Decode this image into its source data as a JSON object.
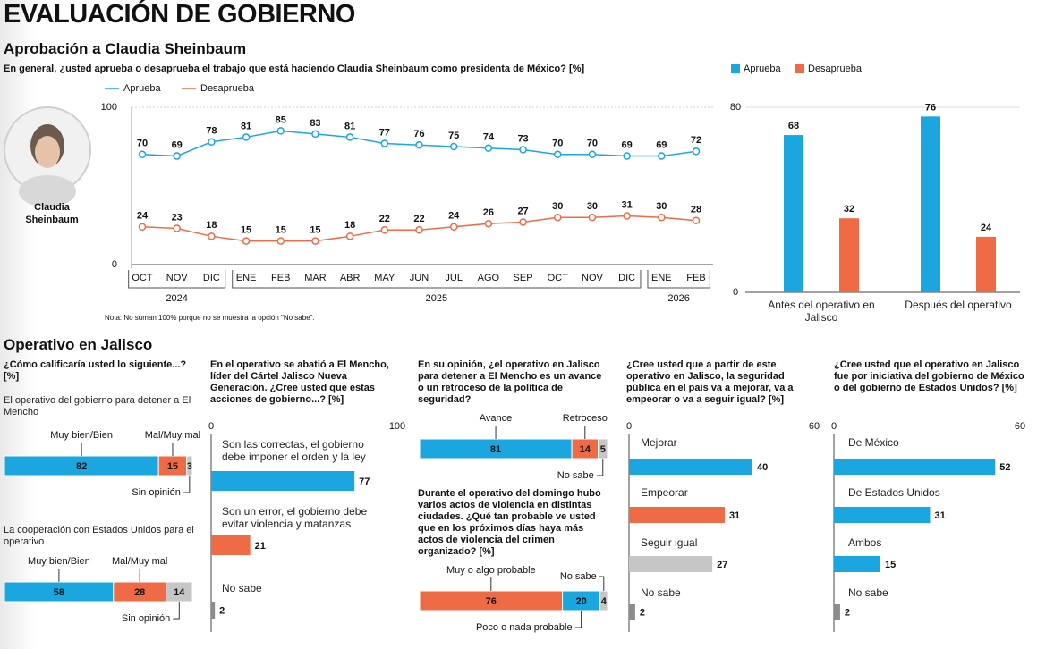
{
  "title": "EVALUACIÓN DE GOBIERNO",
  "section_title": "Operativo en Jalisco",
  "chart_data": [
    {
      "type": "line",
      "title": "Aprobación a Claudia Sheinbaum",
      "subtitle": "En general, ¿usted aprueba o desaprueba el trabajo que está haciendo Claudia Sheinbaum como presidenta de México? [%]",
      "categories": [
        "OCT",
        "NOV",
        "DIC",
        "ENE",
        "FEB",
        "MAR",
        "ABR",
        "MAY",
        "JUN",
        "JUL",
        "AGO",
        "SEP",
        "OCT",
        "NOV",
        "DIC",
        "ENE",
        "FEB"
      ],
      "year_labels": [
        "2024",
        "2025",
        "2026"
      ],
      "series": [
        {
          "name": "Aprueba",
          "color": "#1ba6df",
          "values": [
            70,
            69,
            78,
            81,
            85,
            83,
            81,
            77,
            76,
            75,
            74,
            73,
            70,
            70,
            69,
            69,
            72
          ]
        },
        {
          "name": "Desaprueba",
          "color": "#ee6b45",
          "values": [
            24,
            23,
            18,
            15,
            15,
            15,
            18,
            22,
            22,
            24,
            26,
            27,
            30,
            30,
            31,
            30,
            28
          ]
        }
      ],
      "ylim": [
        0,
        100
      ],
      "yticks": [
        0,
        100
      ],
      "note": "Nota: No suman 100% porque no se muestra la opción \"No sabe\".",
      "photo_caption": "Claudia Sheinbaum"
    },
    {
      "type": "bar",
      "categories": [
        "Antes del operativo en Jalisco",
        "Después del operativo"
      ],
      "series": [
        {
          "name": "Aprueba",
          "color": "#1ba6df",
          "values": [
            68,
            76
          ]
        },
        {
          "name": "Desaprueba",
          "color": "#ee6b45",
          "values": [
            32,
            24
          ]
        }
      ],
      "ylim": [
        0,
        80
      ],
      "yticks": [
        0,
        80
      ]
    },
    {
      "type": "stacked_hbar",
      "question": "¿Cómo calificaría usted lo siguiente...? [%]",
      "categories": [
        "El operativo del gobierno para detener a El Mencho",
        "La cooperación con Estados Unidos para el operativo"
      ],
      "series": [
        {
          "name": "Muy bien/Bien",
          "color": "#1ba6df",
          "values": [
            82,
            58
          ]
        },
        {
          "name": "Mal/Muy mal",
          "color": "#ee6b45",
          "values": [
            15,
            28
          ]
        },
        {
          "name": "Sin opinión",
          "color": "#c6c6c6",
          "values": [
            3,
            14
          ]
        }
      ],
      "xlim": [
        0,
        100
      ]
    },
    {
      "type": "stacked_hbar",
      "question": "En su opinión, ¿el operativo en Jalisco para detener a El Mencho es un avance o un retroceso de la política de seguridad?",
      "categories": [
        null
      ],
      "series": [
        {
          "name": "Avance",
          "color": "#1ba6df",
          "values": [
            81
          ]
        },
        {
          "name": "Retroceso",
          "color": "#ee6b45",
          "values": [
            14
          ]
        },
        {
          "name": "No sabe",
          "color": "#c6c6c6",
          "values": [
            5
          ]
        }
      ],
      "xlim": [
        0,
        100
      ]
    },
    {
      "type": "stacked_hbar",
      "question": "Durante el operativo del domingo hubo varios actos de violencia en distintas ciudades.  ¿Qué tan probable ve usted que en los próximos días haya más actos de violencia del crimen organizado? [%]",
      "categories": [
        null
      ],
      "series": [
        {
          "name": "Muy o algo probable",
          "color": "#ee6b45",
          "values": [
            76
          ]
        },
        {
          "name": "Poco o nada probable",
          "color": "#1ba6df",
          "values": [
            20
          ]
        },
        {
          "name": "No sabe",
          "color": "#c6c6c6",
          "values": [
            4
          ]
        }
      ],
      "xlim": [
        0,
        100
      ]
    },
    {
      "type": "hbar",
      "question": "En el operativo se abatió a El Mencho, líder del Cártel Jalisco Nueva Generación. ¿Cree usted que estas acciones de gobierno...? [%]",
      "categories": [
        "Son las correctas, el gobierno debe imponer el orden y la ley",
        "Son un error, el gobierno debe evitar violencia y matanzas",
        "No sabe"
      ],
      "values": [
        77,
        21,
        2
      ],
      "colors": [
        "#1ba6df",
        "#ee6b45",
        "#8c8c8c"
      ],
      "xlim": [
        0,
        100
      ],
      "xticks": [
        0,
        100
      ]
    },
    {
      "type": "hbar",
      "question": "¿Cree usted que a partir de este operativo en Jalisco, la seguridad pública en el país va a mejorar, va a empeorar o va a seguir igual? [%]",
      "categories": [
        "Mejorar",
        "Empeorar",
        "Seguir igual",
        "No sabe"
      ],
      "values": [
        40,
        31,
        27,
        2
      ],
      "colors": [
        "#1ba6df",
        "#ee6b45",
        "#c6c6c6",
        "#8c8c8c"
      ],
      "xlim": [
        0,
        60
      ],
      "xticks": [
        0,
        60
      ]
    },
    {
      "type": "hbar",
      "question": "¿Cree usted que el operativo en Jalisco fue por iniciativa del gobierno de México o del gobierno de Estados Unidos? [%]",
      "categories": [
        "De México",
        "De Estados Unidos",
        "Ambos",
        "No sabe"
      ],
      "values": [
        52,
        31,
        15,
        2
      ],
      "colors": [
        "#1ba6df",
        "#1ba6df",
        "#1ba6df",
        "#8c8c8c"
      ],
      "xlim": [
        0,
        60
      ],
      "xticks": [
        0,
        60
      ]
    }
  ]
}
